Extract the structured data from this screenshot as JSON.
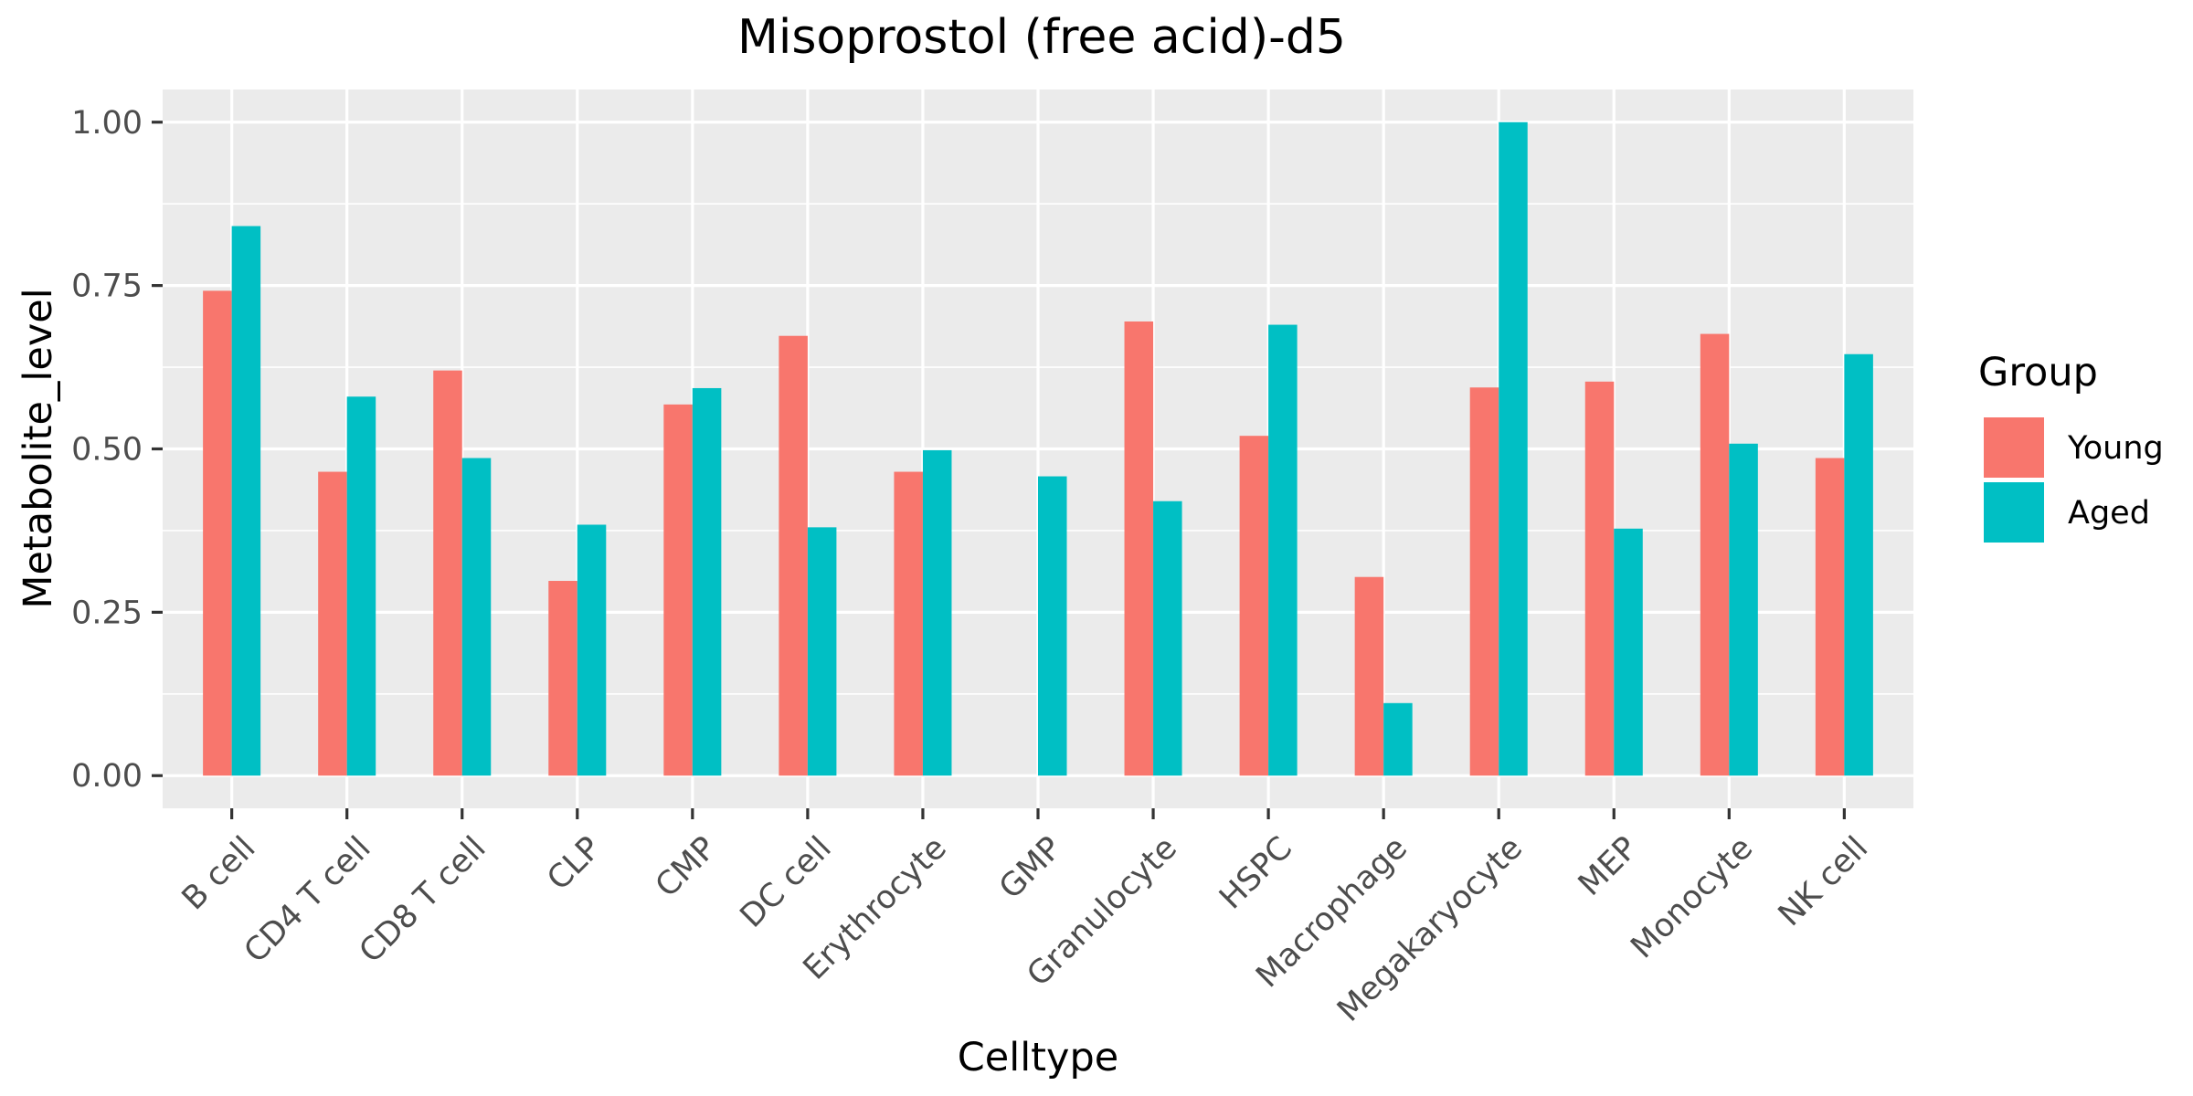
{
  "chart_data": {
    "type": "bar",
    "title": "Misoprostol (free acid)-d5",
    "xlabel": "Celltype",
    "ylabel": "Metabolite_level",
    "ylim": [
      -0.05,
      1.05
    ],
    "yticks": [
      0.0,
      0.25,
      0.5,
      0.75,
      1.0
    ],
    "ytick_labels": [
      "0.00",
      "0.25",
      "0.50",
      "0.75",
      "1.00"
    ],
    "grid": true,
    "legend": {
      "title": "Group",
      "position": "right"
    },
    "categories": [
      "B cell",
      "CD4 T cell",
      "CD8 T cell",
      "CLP",
      "CMP",
      "DC cell",
      "Erythrocyte",
      "GMP",
      "Granulocyte",
      "HSPC",
      "Macrophage",
      "Megakaryocyte",
      "MEP",
      "Monocyte",
      "NK cell"
    ],
    "series": [
      {
        "name": "Young",
        "color": "#F8766D",
        "values": [
          0.742,
          0.465,
          0.62,
          0.298,
          0.568,
          0.673,
          0.465,
          null,
          0.695,
          0.52,
          0.304,
          0.594,
          0.603,
          0.676,
          0.486
        ]
      },
      {
        "name": "Aged",
        "color": "#00BFC4",
        "values": [
          0.841,
          0.58,
          0.486,
          0.384,
          0.593,
          0.38,
          0.498,
          0.458,
          0.42,
          0.69,
          0.111,
          1.0,
          0.378,
          0.508,
          0.645
        ]
      }
    ],
    "colors": {
      "panel_background": "#EBEBEB",
      "grid": "#FFFFFF",
      "tick": "#333333"
    }
  }
}
